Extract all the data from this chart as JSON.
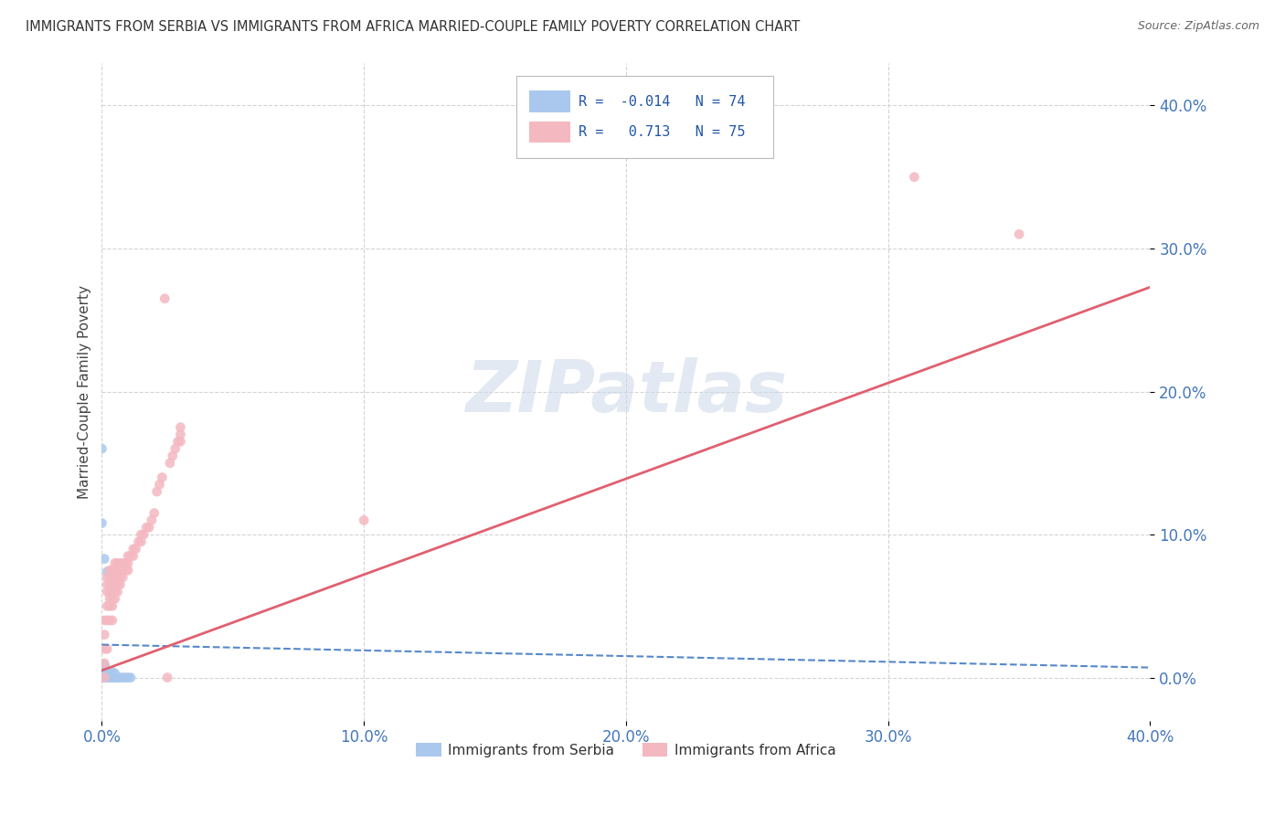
{
  "title": "IMMIGRANTS FROM SERBIA VS IMMIGRANTS FROM AFRICA MARRIED-COUPLE FAMILY POVERTY CORRELATION CHART",
  "source": "Source: ZipAtlas.com",
  "ylabel": "Married-Couple Family Poverty",
  "xmin": 0.0,
  "xmax": 0.4,
  "ymin": -0.03,
  "ymax": 0.43,
  "serbia_R": -0.014,
  "serbia_N": 74,
  "africa_R": 0.713,
  "africa_N": 75,
  "serbia_color": "#aac8ee",
  "africa_color": "#f4b8c0",
  "serbia_line_color": "#5588cc",
  "africa_line_color": "#e06070",
  "serbia_line_intercept": 0.023,
  "serbia_line_slope": -0.04,
  "africa_line_intercept": 0.005,
  "africa_line_slope": 0.67,
  "serbia_scatter": [
    [
      0.0,
      0.0
    ],
    [
      0.0,
      0.0
    ],
    [
      0.0,
      0.0
    ],
    [
      0.0,
      0.0
    ],
    [
      0.0,
      0.0
    ],
    [
      0.0,
      0.0
    ],
    [
      0.0,
      0.0
    ],
    [
      0.0,
      0.0
    ],
    [
      0.0,
      0.0
    ],
    [
      0.0,
      0.0
    ],
    [
      0.0,
      0.0
    ],
    [
      0.0,
      0.0
    ],
    [
      0.0,
      0.0
    ],
    [
      0.0,
      0.001
    ],
    [
      0.0,
      0.001
    ],
    [
      0.0,
      0.002
    ],
    [
      0.0,
      0.002
    ],
    [
      0.0,
      0.003
    ],
    [
      0.0,
      0.003
    ],
    [
      0.0,
      0.004
    ],
    [
      0.0,
      0.005
    ],
    [
      0.0,
      0.005
    ],
    [
      0.0,
      0.006
    ],
    [
      0.0,
      0.007
    ],
    [
      0.0,
      0.007
    ],
    [
      0.0,
      0.008
    ],
    [
      0.0,
      0.009
    ],
    [
      0.001,
      0.0
    ],
    [
      0.001,
      0.0
    ],
    [
      0.001,
      0.0
    ],
    [
      0.001,
      0.0
    ],
    [
      0.001,
      0.0
    ],
    [
      0.001,
      0.0
    ],
    [
      0.001,
      0.001
    ],
    [
      0.001,
      0.002
    ],
    [
      0.001,
      0.003
    ],
    [
      0.001,
      0.004
    ],
    [
      0.001,
      0.005
    ],
    [
      0.001,
      0.006
    ],
    [
      0.001,
      0.007
    ],
    [
      0.001,
      0.008
    ],
    [
      0.001,
      0.009
    ],
    [
      0.002,
      0.0
    ],
    [
      0.002,
      0.0
    ],
    [
      0.002,
      0.0
    ],
    [
      0.002,
      0.0
    ],
    [
      0.002,
      0.001
    ],
    [
      0.002,
      0.002
    ],
    [
      0.002,
      0.003
    ],
    [
      0.002,
      0.004
    ],
    [
      0.002,
      0.005
    ],
    [
      0.003,
      0.0
    ],
    [
      0.003,
      0.0
    ],
    [
      0.003,
      0.001
    ],
    [
      0.003,
      0.002
    ],
    [
      0.003,
      0.003
    ],
    [
      0.004,
      0.0
    ],
    [
      0.004,
      0.0
    ],
    [
      0.004,
      0.002
    ],
    [
      0.004,
      0.004
    ],
    [
      0.005,
      0.0
    ],
    [
      0.005,
      0.0
    ],
    [
      0.005,
      0.003
    ],
    [
      0.006,
      0.0
    ],
    [
      0.006,
      0.0
    ],
    [
      0.007,
      0.0
    ],
    [
      0.008,
      0.0
    ],
    [
      0.009,
      0.0
    ],
    [
      0.01,
      0.0
    ],
    [
      0.011,
      0.0
    ],
    [
      0.0,
      0.16
    ],
    [
      0.0,
      0.108
    ],
    [
      0.001,
      0.083
    ],
    [
      0.002,
      0.074
    ]
  ],
  "africa_scatter": [
    [
      0.001,
      0.0
    ],
    [
      0.001,
      0.01
    ],
    [
      0.001,
      0.02
    ],
    [
      0.001,
      0.03
    ],
    [
      0.001,
      0.04
    ],
    [
      0.002,
      0.02
    ],
    [
      0.002,
      0.04
    ],
    [
      0.002,
      0.05
    ],
    [
      0.002,
      0.06
    ],
    [
      0.002,
      0.065
    ],
    [
      0.002,
      0.07
    ],
    [
      0.003,
      0.04
    ],
    [
      0.003,
      0.05
    ],
    [
      0.003,
      0.055
    ],
    [
      0.003,
      0.06
    ],
    [
      0.003,
      0.065
    ],
    [
      0.003,
      0.07
    ],
    [
      0.003,
      0.075
    ],
    [
      0.004,
      0.04
    ],
    [
      0.004,
      0.05
    ],
    [
      0.004,
      0.055
    ],
    [
      0.004,
      0.06
    ],
    [
      0.004,
      0.065
    ],
    [
      0.004,
      0.07
    ],
    [
      0.004,
      0.075
    ],
    [
      0.005,
      0.055
    ],
    [
      0.005,
      0.06
    ],
    [
      0.005,
      0.065
    ],
    [
      0.005,
      0.07
    ],
    [
      0.005,
      0.075
    ],
    [
      0.005,
      0.08
    ],
    [
      0.006,
      0.06
    ],
    [
      0.006,
      0.065
    ],
    [
      0.006,
      0.07
    ],
    [
      0.006,
      0.075
    ],
    [
      0.006,
      0.08
    ],
    [
      0.007,
      0.065
    ],
    [
      0.007,
      0.07
    ],
    [
      0.007,
      0.075
    ],
    [
      0.007,
      0.08
    ],
    [
      0.008,
      0.07
    ],
    [
      0.008,
      0.075
    ],
    [
      0.008,
      0.08
    ],
    [
      0.009,
      0.075
    ],
    [
      0.009,
      0.08
    ],
    [
      0.01,
      0.075
    ],
    [
      0.01,
      0.08
    ],
    [
      0.01,
      0.085
    ],
    [
      0.011,
      0.085
    ],
    [
      0.012,
      0.085
    ],
    [
      0.012,
      0.09
    ],
    [
      0.013,
      0.09
    ],
    [
      0.014,
      0.095
    ],
    [
      0.015,
      0.095
    ],
    [
      0.015,
      0.1
    ],
    [
      0.016,
      0.1
    ],
    [
      0.017,
      0.105
    ],
    [
      0.018,
      0.105
    ],
    [
      0.019,
      0.11
    ],
    [
      0.02,
      0.115
    ],
    [
      0.021,
      0.13
    ],
    [
      0.022,
      0.135
    ],
    [
      0.023,
      0.14
    ],
    [
      0.024,
      0.265
    ],
    [
      0.025,
      0.0
    ],
    [
      0.026,
      0.15
    ],
    [
      0.027,
      0.155
    ],
    [
      0.028,
      0.16
    ],
    [
      0.029,
      0.165
    ],
    [
      0.03,
      0.165
    ],
    [
      0.03,
      0.17
    ],
    [
      0.03,
      0.175
    ],
    [
      0.1,
      0.11
    ],
    [
      0.31,
      0.35
    ],
    [
      0.35,
      0.31
    ]
  ],
  "watermark": "ZIPatlas",
  "background_color": "#ffffff",
  "grid_color": "#d0d0d0",
  "tick_label_color": "#4477bb",
  "ytick_labels": [
    "0.0%",
    "10.0%",
    "20.0%",
    "30.0%",
    "40.0%"
  ],
  "ytick_values": [
    0.0,
    0.1,
    0.2,
    0.3,
    0.4
  ],
  "xtick_labels": [
    "0.0%",
    "10.0%",
    "20.0%",
    "30.0%",
    "40.0%"
  ],
  "xtick_values": [
    0.0,
    0.1,
    0.2,
    0.3,
    0.4
  ]
}
